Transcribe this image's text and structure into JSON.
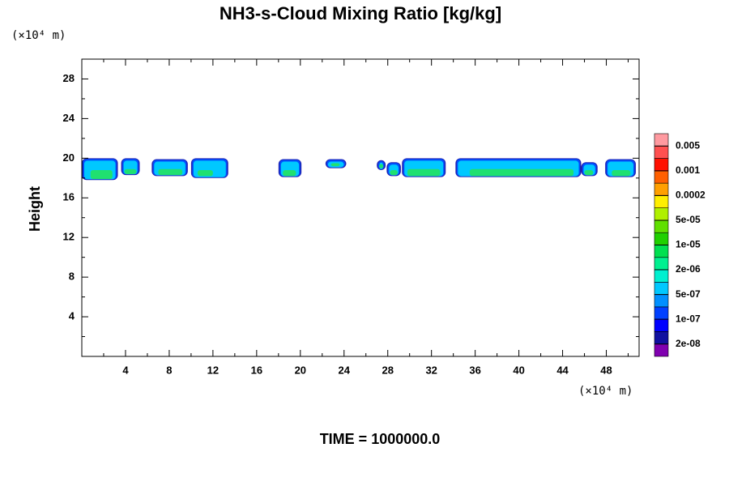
{
  "chart_data": {
    "type": "contour",
    "title": "NH3-s-Cloud Mixing Ratio [kg/kg]",
    "ylabel": "Height",
    "x_unit": "(×10⁴ m)",
    "y_unit": "(×10⁴ m)",
    "footer": "TIME = 1000000.0",
    "xlim": [
      0,
      51
    ],
    "ylim": [
      0,
      30
    ],
    "xticks": [
      4,
      8,
      12,
      16,
      20,
      24,
      28,
      32,
      36,
      40,
      44,
      48
    ],
    "yticks": [
      4,
      8,
      12,
      16,
      20,
      24,
      28
    ],
    "xminorticks": [
      2,
      6,
      10,
      14,
      18,
      22,
      26,
      30,
      34,
      38,
      42,
      46,
      50
    ],
    "yminorticks": [
      2,
      6,
      10,
      14,
      18,
      22,
      26
    ],
    "layer_colors": [
      "#2020b0",
      "#0050ff",
      "#00c8ff",
      "#20e070"
    ],
    "clouds": [
      {
        "x": [
          0,
          3.3
        ],
        "y": [
          17.8,
          20
        ],
        "core_x": [
          0.8,
          2.8
        ],
        "core_y": [
          17.9,
          18.8
        ]
      },
      {
        "x": [
          3.6,
          5.3
        ],
        "y": [
          18.3,
          20
        ],
        "core_x": [
          3.9,
          5
        ],
        "core_y": [
          18.4,
          18.9
        ]
      },
      {
        "x": [
          6.4,
          9.7
        ],
        "y": [
          18.2,
          19.9
        ],
        "core_x": [
          7,
          9.2
        ],
        "core_y": [
          18.3,
          18.9
        ]
      },
      {
        "x": [
          10,
          13.4
        ],
        "y": [
          18,
          20
        ],
        "core_x": [
          10.6,
          12
        ],
        "core_y": [
          18.2,
          18.8
        ]
      },
      {
        "x": [
          18,
          20.1
        ],
        "y": [
          18.1,
          19.9
        ],
        "core_x": [
          18.4,
          19.6
        ],
        "core_y": [
          18.2,
          18.8
        ]
      },
      {
        "x": [
          22.3,
          24.2
        ],
        "y": [
          19,
          19.9
        ],
        "core_x": [
          22.8,
          23.6
        ],
        "core_y": [
          19.2,
          19.5
        ]
      },
      {
        "x": [
          27,
          27.8
        ],
        "y": [
          18.8,
          19.8
        ],
        "core_x": [
          27.2,
          27.6
        ],
        "core_y": [
          19,
          19.4
        ]
      },
      {
        "x": [
          27.9,
          29.2
        ],
        "y": [
          18.2,
          19.6
        ],
        "core_x": [
          28.2,
          28.9
        ],
        "core_y": [
          18.3,
          18.8
        ]
      },
      {
        "x": [
          29.3,
          33.3
        ],
        "y": [
          18.1,
          20
        ],
        "core_x": [
          29.8,
          32.8
        ],
        "core_y": [
          18.2,
          18.9
        ]
      },
      {
        "x": [
          34.2,
          45.7
        ],
        "y": [
          18.1,
          20
        ],
        "core_x": [
          35.5,
          45
        ],
        "core_y": [
          18.2,
          18.9
        ]
      },
      {
        "x": [
          45.7,
          47.2
        ],
        "y": [
          18.2,
          19.6
        ],
        "core_x": [
          46,
          46.8
        ],
        "core_y": [
          18.3,
          18.8
        ]
      },
      {
        "x": [
          47.9,
          50.7
        ],
        "y": [
          18.1,
          19.9
        ],
        "core_x": [
          48.5,
          50.2
        ],
        "core_y": [
          18.2,
          18.8
        ]
      }
    ],
    "colorbar": {
      "colors": [
        "#8000b0",
        "#1010a0",
        "#0000ff",
        "#0040ff",
        "#0090ff",
        "#00c8ff",
        "#00f0d0",
        "#00f090",
        "#00e050",
        "#20d000",
        "#60e000",
        "#b0f000",
        "#ffee00",
        "#ffa000",
        "#ff6000",
        "#ff1000",
        "#ff5050",
        "#ff9aa0"
      ],
      "ticks": [
        {
          "value": 2e-08,
          "label": "2e-08"
        },
        {
          "value": 1e-07,
          "label": "1e-07"
        },
        {
          "value": 5e-07,
          "label": "5e-07"
        },
        {
          "value": 2e-06,
          "label": "2e-06"
        },
        {
          "value": 1e-05,
          "label": "1e-05"
        },
        {
          "value": 5e-05,
          "label": "5e-05"
        },
        {
          "value": 0.0002,
          "label": "0.0002"
        },
        {
          "value": 0.001,
          "label": "0.001"
        },
        {
          "value": 0.005,
          "label": "0.005"
        }
      ]
    }
  }
}
